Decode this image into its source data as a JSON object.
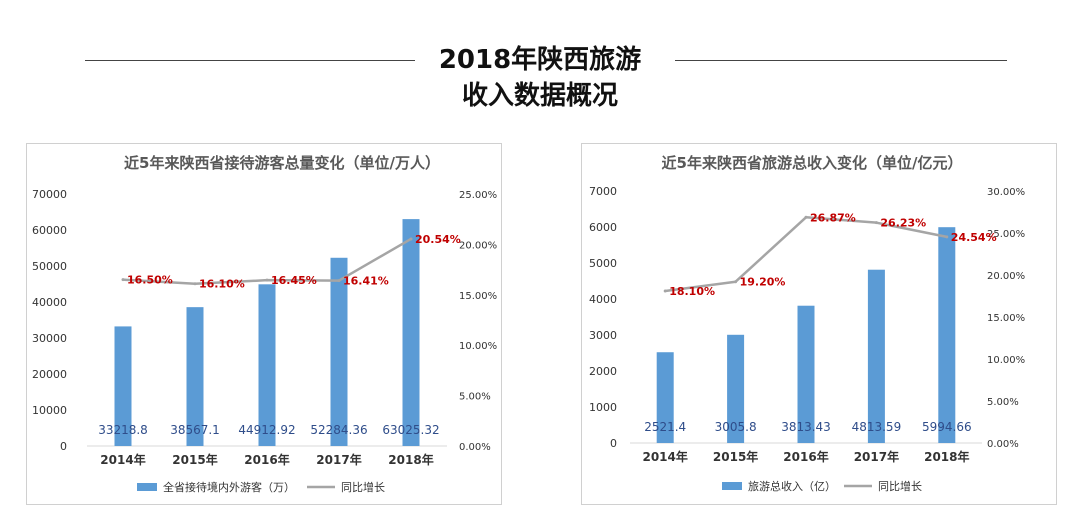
{
  "header": {
    "title_line1": "2018年陕西旅游",
    "title_line2": "收入数据概况"
  },
  "chart_data": [
    {
      "type": "bar",
      "title": "近5年来陕西省接待游客总量变化（单位/万人）",
      "categories": [
        "2014年",
        "2015年",
        "2016年",
        "2017年",
        "2018年"
      ],
      "series": [
        {
          "name": "全省接待境内外游客（万）",
          "kind": "bar",
          "axis": "left",
          "color": "#5b9bd5",
          "values": [
            33218.8,
            38567.1,
            44912.92,
            52284.36,
            63025.32
          ],
          "labels": [
            "33218.8",
            "38567.1",
            "44912.92",
            "52284.36",
            "63025.32"
          ]
        },
        {
          "name": "同比增长",
          "kind": "line",
          "axis": "right",
          "color": "#a5a5a5",
          "values": [
            16.5,
            16.1,
            16.45,
            16.41,
            20.54
          ],
          "labels": [
            "16.50%",
            "16.10%",
            "16.45%",
            "16.41%",
            "20.54%"
          ]
        }
      ],
      "y_left": {
        "min": 0,
        "max": 70000,
        "ticks": [
          "0",
          "10000",
          "20000",
          "30000",
          "40000",
          "50000",
          "60000",
          "70000"
        ]
      },
      "y_right": {
        "min": 0,
        "max": 25,
        "ticks": [
          "0.00%",
          "5.00%",
          "10.00%",
          "15.00%",
          "20.00%",
          "25.00%"
        ]
      },
      "legend": "bottom",
      "grid": false
    },
    {
      "type": "bar",
      "title": "近5年来陕西省旅游总收入变化（单位/亿元）",
      "categories": [
        "2014年",
        "2015年",
        "2016年",
        "2017年",
        "2018年"
      ],
      "series": [
        {
          "name": "旅游总收入（亿）",
          "kind": "bar",
          "axis": "left",
          "color": "#5b9bd5",
          "values": [
            2521.4,
            3005.8,
            3813.43,
            4813.59,
            5994.66
          ],
          "labels": [
            "2521.4",
            "3005.8",
            "3813.43",
            "4813.59",
            "5994.66"
          ]
        },
        {
          "name": "同比增长",
          "kind": "line",
          "axis": "right",
          "color": "#a5a5a5",
          "values": [
            18.1,
            19.2,
            26.87,
            26.23,
            24.54
          ],
          "labels": [
            "18.10%",
            "19.20%",
            "26.87%",
            "26.23%",
            "24.54%"
          ]
        }
      ],
      "y_left": {
        "min": 0,
        "max": 7000,
        "ticks": [
          "0",
          "1000",
          "2000",
          "3000",
          "4000",
          "5000",
          "6000",
          "7000"
        ]
      },
      "y_right": {
        "min": 0,
        "max": 30,
        "ticks": [
          "0.00%",
          "5.00%",
          "10.00%",
          "15.00%",
          "20.00%",
          "25.00%",
          "30.00%"
        ]
      },
      "legend": "bottom",
      "grid": false
    }
  ]
}
